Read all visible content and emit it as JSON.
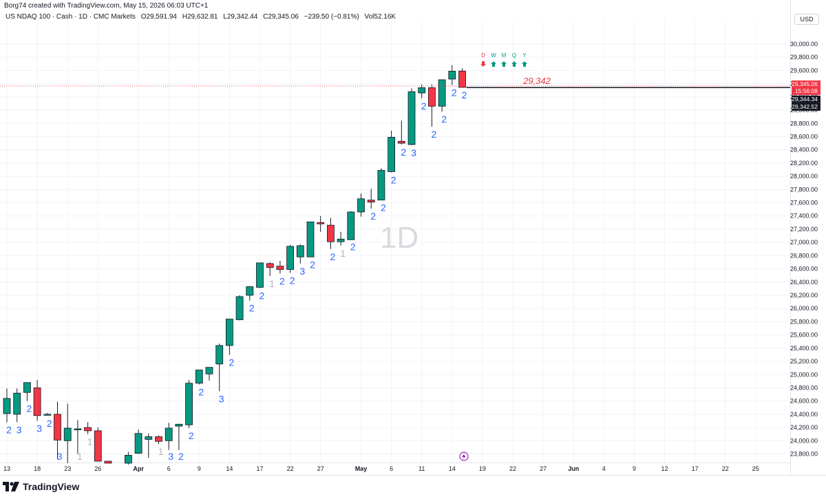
{
  "caption": "Borg74 created with TradingView.com, May 15, 2026 06:03 UTC+1",
  "legend": {
    "symbol": "US NDAQ 100 · Cash · 1D · CMC Markets",
    "open": "O29,591.94",
    "high": "H29,632.81",
    "low": "L29,342.44",
    "close": "C29,345.06",
    "change": "−239.50 (−0.81%)",
    "volume": "Vol52.16K"
  },
  "currency": "USD",
  "watermark": "1D",
  "brand": "TradingView",
  "colors": {
    "up": "#089981",
    "down": "#f23645",
    "count_blue": "#2962ff",
    "count_gray": "#b2b5be",
    "grid": "#f0f3fa",
    "axis_text": "#131722",
    "price_label_bg": "#f23645",
    "dark_label_bg": "#131722",
    "lightning": "#9c27b0"
  },
  "mtf_indicator": [
    {
      "label": "D",
      "direction": "down"
    },
    {
      "label": "W",
      "direction": "up"
    },
    {
      "label": "M",
      "direction": "up"
    },
    {
      "label": "Q",
      "direction": "up"
    },
    {
      "label": "Y",
      "direction": "up"
    }
  ],
  "price_labels": {
    "last_price": "29,345.06",
    "countdown": "15:56:08",
    "label_2": "29,344.34",
    "label_3": "29,342.52"
  },
  "hline": {
    "value": 29342,
    "label": "29,342"
  },
  "chart_data": {
    "type": "candlestick",
    "y_axis": {
      "range": [
        23670,
        30250
      ],
      "ticks": [
        "23,800.00",
        "24,000.00",
        "24,200.00",
        "24,400.00",
        "24,600.00",
        "24,800.00",
        "25,000.00",
        "25,200.00",
        "25,400.00",
        "25,600.00",
        "25,800.00",
        "26,000.00",
        "26,200.00",
        "26,400.00",
        "26,600.00",
        "26,800.00",
        "27,000.00",
        "27,200.00",
        "27,400.00",
        "27,600.00",
        "27,800.00",
        "28,000.00",
        "28,200.00",
        "28,400.00",
        "28,600.00",
        "28,800.00",
        "29,000.00",
        "29,200.00",
        "29,400.00",
        "29,600.00",
        "29,800.00",
        "30,000.00"
      ],
      "tick_values": [
        23800,
        24000,
        24200,
        24400,
        24600,
        24800,
        25000,
        25200,
        25400,
        25600,
        25800,
        26000,
        26200,
        26400,
        26600,
        26800,
        27000,
        27200,
        27400,
        27600,
        27800,
        28000,
        28200,
        28400,
        28600,
        28800,
        29000,
        29200,
        29400,
        29600,
        29800,
        30000
      ]
    },
    "x_axis": {
      "ticks": [
        {
          "i": 0,
          "label": "13",
          "bold": false
        },
        {
          "i": 3,
          "label": "18",
          "bold": false
        },
        {
          "i": 6,
          "label": "23",
          "bold": false
        },
        {
          "i": 9,
          "label": "26",
          "bold": false
        },
        {
          "i": 13,
          "label": "Apr",
          "bold": true
        },
        {
          "i": 16,
          "label": "6",
          "bold": false
        },
        {
          "i": 19,
          "label": "9",
          "bold": false
        },
        {
          "i": 22,
          "label": "14",
          "bold": false
        },
        {
          "i": 25,
          "label": "17",
          "bold": false
        },
        {
          "i": 28,
          "label": "22",
          "bold": false
        },
        {
          "i": 31,
          "label": "27",
          "bold": false
        },
        {
          "i": 35,
          "label": "May",
          "bold": true
        },
        {
          "i": 38,
          "label": "6",
          "bold": false
        },
        {
          "i": 41,
          "label": "11",
          "bold": false
        },
        {
          "i": 44,
          "label": "14",
          "bold": false
        },
        {
          "i": 47,
          "label": "19",
          "bold": false
        },
        {
          "i": 50,
          "label": "22",
          "bold": false
        },
        {
          "i": 53,
          "label": "27",
          "bold": false
        },
        {
          "i": 56,
          "label": "Jun",
          "bold": true
        },
        {
          "i": 59,
          "label": "4",
          "bold": false
        },
        {
          "i": 62,
          "label": "9",
          "bold": false
        },
        {
          "i": 65,
          "label": "12",
          "bold": false
        },
        {
          "i": 68,
          "label": "17",
          "bold": false
        },
        {
          "i": 71,
          "label": "22",
          "bold": false
        },
        {
          "i": 74,
          "label": "25",
          "bold": false
        }
      ]
    },
    "candles": [
      {
        "o": 24410,
        "h": 24790,
        "l": 24280,
        "c": 24640
      },
      {
        "o": 24400,
        "h": 24790,
        "l": 24280,
        "c": 24720
      },
      {
        "o": 24730,
        "h": 24880,
        "l": 24600,
        "c": 24880
      },
      {
        "o": 24800,
        "h": 24920,
        "l": 24300,
        "c": 24380
      },
      {
        "o": 24390,
        "h": 24420,
        "l": 24380,
        "c": 24400
      },
      {
        "o": 24400,
        "h": 24590,
        "l": 23720,
        "c": 24010
      },
      {
        "o": 24000,
        "h": 24560,
        "l": 23660,
        "c": 24190
      },
      {
        "o": 24180,
        "h": 24310,
        "l": 23800,
        "c": 24180
      },
      {
        "o": 24200,
        "h": 24280,
        "l": 24100,
        "c": 24150
      },
      {
        "o": 24150,
        "h": 24200,
        "l": 23690,
        "c": 23690
      },
      {
        "o": 23690,
        "h": 23690,
        "l": 23660,
        "c": 23660
      },
      {
        "o": null,
        "h": null,
        "l": null,
        "c": null
      },
      {
        "o": 23660,
        "h": 23830,
        "l": 23640,
        "c": 23780
      },
      {
        "o": 23810,
        "h": 24170,
        "l": 23800,
        "c": 24110
      },
      {
        "o": 24020,
        "h": 24110,
        "l": 23740,
        "c": 24060
      },
      {
        "o": 24060,
        "h": 24080,
        "l": 23950,
        "c": 23990
      },
      {
        "o": 24000,
        "h": 24270,
        "l": 23860,
        "c": 24190
      },
      {
        "o": 24220,
        "h": 24250,
        "l": 23860,
        "c": 24250
      },
      {
        "o": 24240,
        "h": 24920,
        "l": 24190,
        "c": 24870
      },
      {
        "o": 24870,
        "h": 25070,
        "l": 24850,
        "c": 25070
      },
      {
        "o": 25010,
        "h": 25090,
        "l": 24910,
        "c": 25110
      },
      {
        "o": 25160,
        "h": 25470,
        "l": 24750,
        "c": 25440
      },
      {
        "o": 25440,
        "h": 25840,
        "l": 25300,
        "c": 25840
      },
      {
        "o": 25830,
        "h": 26200,
        "l": 25820,
        "c": 26180
      },
      {
        "o": 26200,
        "h": 26340,
        "l": 26120,
        "c": 26330
      },
      {
        "o": 26320,
        "h": 26690,
        "l": 26310,
        "c": 26690
      },
      {
        "o": 26680,
        "h": 26700,
        "l": 26490,
        "c": 26620
      },
      {
        "o": 26640,
        "h": 26720,
        "l": 26530,
        "c": 26590
      },
      {
        "o": 26590,
        "h": 26960,
        "l": 26540,
        "c": 26940
      },
      {
        "o": 26780,
        "h": 26970,
        "l": 26680,
        "c": 26950
      },
      {
        "o": 26780,
        "h": 27310,
        "l": 26780,
        "c": 27310
      },
      {
        "o": 27300,
        "h": 27400,
        "l": 27160,
        "c": 27280
      },
      {
        "o": 27260,
        "h": 27370,
        "l": 26900,
        "c": 27010
      },
      {
        "o": 27010,
        "h": 27160,
        "l": 26950,
        "c": 27050
      },
      {
        "o": 27040,
        "h": 27470,
        "l": 27050,
        "c": 27460
      },
      {
        "o": 27460,
        "h": 27740,
        "l": 27390,
        "c": 27660
      },
      {
        "o": 27640,
        "h": 27810,
        "l": 27510,
        "c": 27610
      },
      {
        "o": 27640,
        "h": 28120,
        "l": 27640,
        "c": 28090
      },
      {
        "o": 28070,
        "h": 28690,
        "l": 28060,
        "c": 28590
      },
      {
        "o": 28530,
        "h": 28840,
        "l": 28480,
        "c": 28500
      },
      {
        "o": 28480,
        "h": 29330,
        "l": 28470,
        "c": 29280
      },
      {
        "o": 29260,
        "h": 29390,
        "l": 29180,
        "c": 29340
      },
      {
        "o": 29340,
        "h": 29390,
        "l": 28750,
        "c": 29060
      },
      {
        "o": 29060,
        "h": 29460,
        "l": 28980,
        "c": 29460
      },
      {
        "o": 29470,
        "h": 29680,
        "l": 29380,
        "c": 29590
      },
      {
        "o": 29591.94,
        "h": 29632.81,
        "l": 29342.44,
        "c": 29345.06
      }
    ],
    "counts": [
      {
        "i": 0,
        "v": "2",
        "pos": "below",
        "color": "blue"
      },
      {
        "i": 1,
        "v": "3",
        "pos": "below",
        "color": "blue"
      },
      {
        "i": 2,
        "v": "2",
        "pos": "below",
        "color": "blue"
      },
      {
        "i": 3,
        "v": "3",
        "pos": "below",
        "color": "blue"
      },
      {
        "i": 4,
        "v": "2",
        "pos": "below",
        "color": "blue"
      },
      {
        "i": 5,
        "v": "3",
        "pos": "below",
        "color": "blue"
      },
      {
        "i": 7,
        "v": "1",
        "pos": "below",
        "color": "gray"
      },
      {
        "i": 8,
        "v": "1",
        "pos": "below",
        "color": "gray"
      },
      {
        "i": 15,
        "v": "1",
        "pos": "below",
        "color": "gray"
      },
      {
        "i": 16,
        "v": "3",
        "pos": "below",
        "color": "blue"
      },
      {
        "i": 17,
        "v": "2",
        "pos": "below",
        "color": "blue"
      },
      {
        "i": 18,
        "v": "2",
        "pos": "below",
        "color": "blue"
      },
      {
        "i": 19,
        "v": "2",
        "pos": "below",
        "color": "blue"
      },
      {
        "i": 21,
        "v": "3",
        "pos": "below",
        "color": "blue"
      },
      {
        "i": 22,
        "v": "2",
        "pos": "below",
        "color": "blue"
      },
      {
        "i": 24,
        "v": "2",
        "pos": "below",
        "color": "blue"
      },
      {
        "i": 25,
        "v": "2",
        "pos": "below",
        "color": "blue"
      },
      {
        "i": 26,
        "v": "1",
        "pos": "below",
        "color": "gray"
      },
      {
        "i": 27,
        "v": "2",
        "pos": "below",
        "color": "blue"
      },
      {
        "i": 28,
        "v": "2",
        "pos": "below",
        "color": "blue"
      },
      {
        "i": 29,
        "v": "3",
        "pos": "below",
        "color": "blue"
      },
      {
        "i": 30,
        "v": "2",
        "pos": "below",
        "color": "blue"
      },
      {
        "i": 32,
        "v": "2",
        "pos": "below",
        "color": "blue"
      },
      {
        "i": 33,
        "v": "1",
        "pos": "below",
        "color": "gray"
      },
      {
        "i": 34,
        "v": "2",
        "pos": "below",
        "color": "blue"
      },
      {
        "i": 36,
        "v": "2",
        "pos": "below",
        "color": "blue"
      },
      {
        "i": 37,
        "v": "2",
        "pos": "below",
        "color": "blue"
      },
      {
        "i": 38,
        "v": "2",
        "pos": "below",
        "color": "blue"
      },
      {
        "i": 39,
        "v": "2",
        "pos": "below",
        "color": "blue"
      },
      {
        "i": 40,
        "v": "3",
        "pos": "below",
        "color": "blue"
      },
      {
        "i": 41,
        "v": "2",
        "pos": "below",
        "color": "blue"
      },
      {
        "i": 42,
        "v": "2",
        "pos": "below",
        "color": "blue"
      },
      {
        "i": 43,
        "v": "2",
        "pos": "below",
        "color": "blue"
      },
      {
        "i": 44,
        "v": "2",
        "pos": "below",
        "color": "blue"
      },
      {
        "i": 45,
        "v": "2",
        "pos": "below",
        "color": "blue"
      }
    ]
  }
}
